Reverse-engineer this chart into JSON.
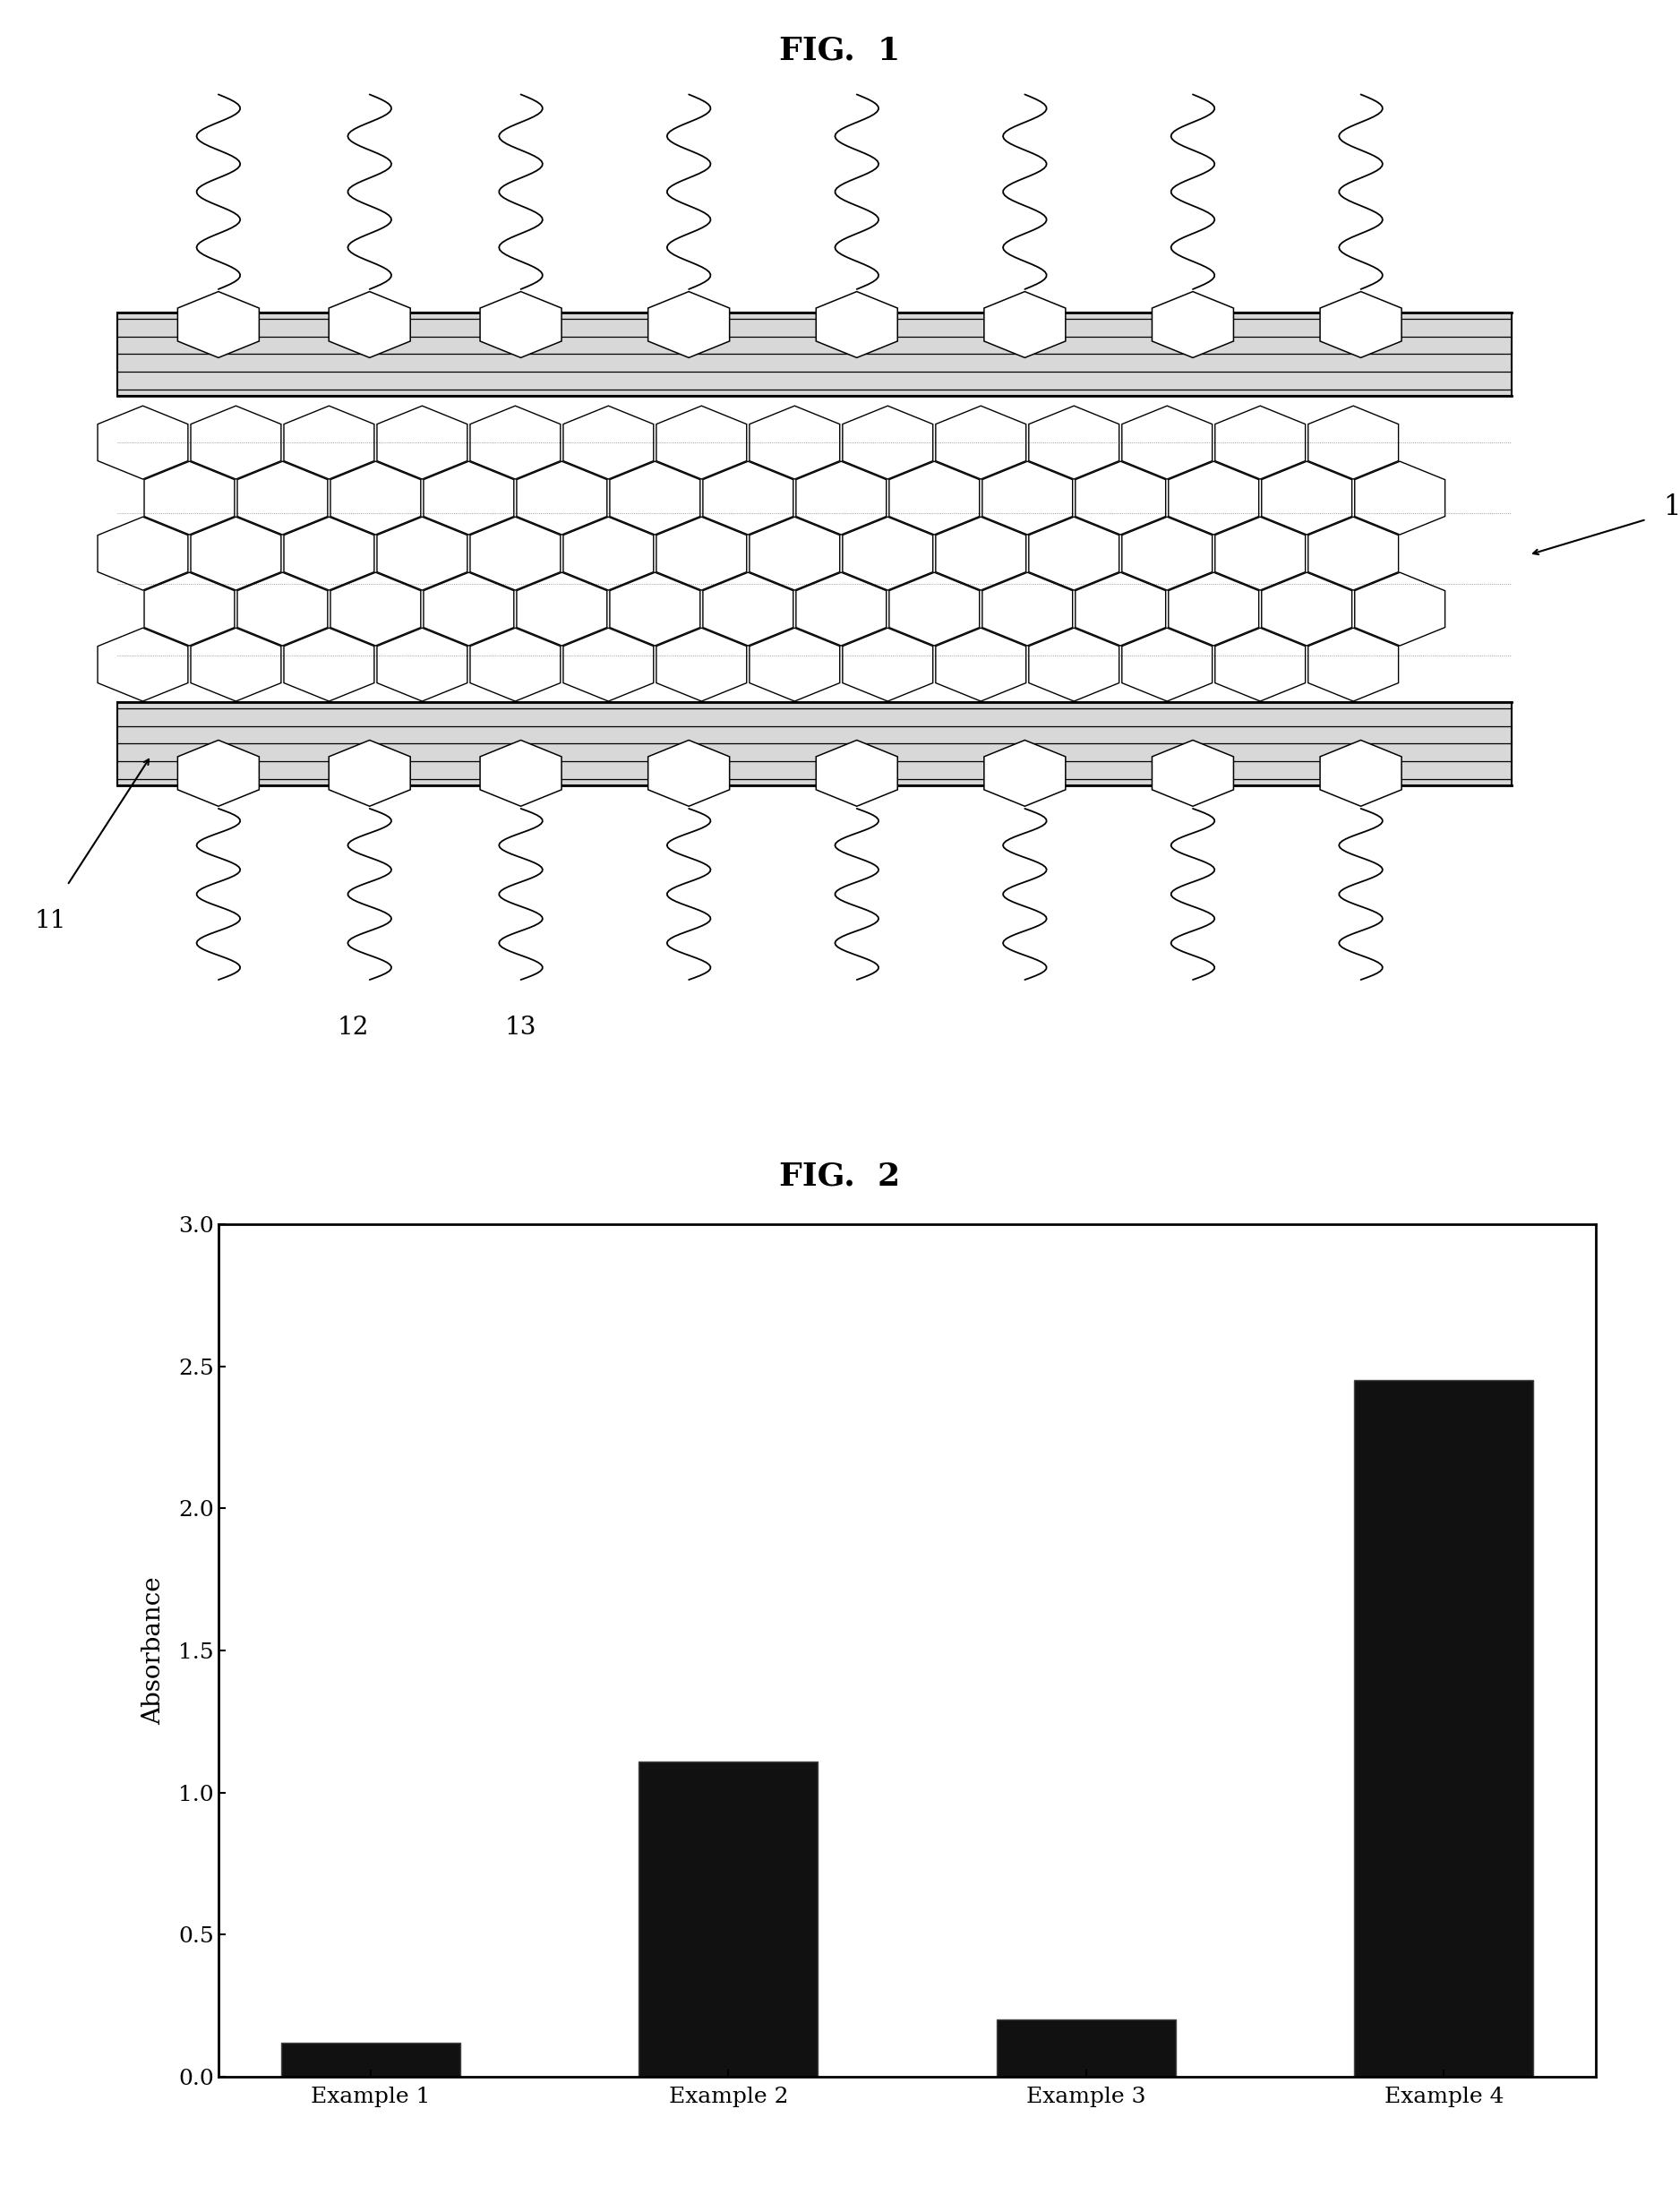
{
  "fig1_title": "FIG.  1",
  "fig2_title": "FIG.  2",
  "bar_categories": [
    "Example 1",
    "Example 2",
    "Example 3",
    "Example 4"
  ],
  "bar_values": [
    0.12,
    1.11,
    0.2,
    2.45
  ],
  "bar_color": "#111111",
  "bar_edge_color": "#444444",
  "ylabel": "Absorbance",
  "ylim": [
    0.0,
    3.0
  ],
  "yticks": [
    0.0,
    0.5,
    1.0,
    1.5,
    2.0,
    2.5,
    3.0
  ],
  "label_11": "11",
  "label_12": "12",
  "label_13": "13",
  "label_1": "1",
  "bg_color": "#ffffff",
  "title_fontsize": 26,
  "axis_fontsize": 20,
  "tick_fontsize": 18,
  "label_fontsize": 20
}
